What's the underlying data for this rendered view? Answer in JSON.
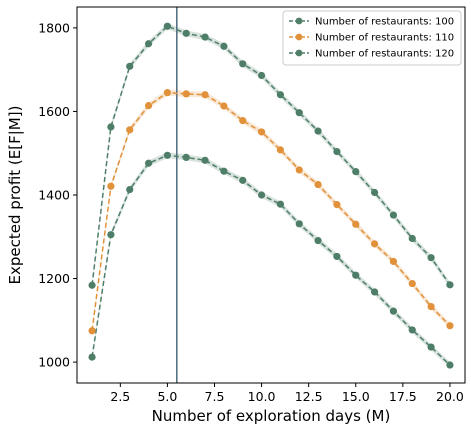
{
  "chart_data": {
    "type": "line",
    "title": "",
    "xlabel": "Number of exploration days (M)",
    "ylabel": "Expected profit (E[F|M])",
    "xlim": [
      0.2,
      20.8
    ],
    "ylim": [
      950,
      1850
    ],
    "grid": false,
    "legend_position": "top-right",
    "x_ticks": [
      2.5,
      5.0,
      7.5,
      10.0,
      12.5,
      15.0,
      17.5,
      20.0
    ],
    "x_tick_labels": [
      "2.5",
      "5.0",
      "7.5",
      "10.0",
      "12.5",
      "15.0",
      "17.5",
      "20.0"
    ],
    "y_ticks": [
      1000,
      1200,
      1400,
      1600,
      1800
    ],
    "y_tick_labels": [
      "1000",
      "1200",
      "1400",
      "1600",
      "1800"
    ],
    "vertical_line_x": 5.5,
    "x": [
      1,
      2,
      3,
      4,
      5,
      6,
      7,
      8,
      9,
      10,
      11,
      12,
      13,
      14,
      15,
      16,
      17,
      18,
      19,
      20
    ],
    "series": [
      {
        "name": "Number of restaurants: 100",
        "color": "#4e7e68",
        "values": [
          1012,
          1305,
          1413,
          1476,
          1495,
          1490,
          1483,
          1457,
          1435,
          1400,
          1378,
          1331,
          1291,
          1253,
          1208,
          1168,
          1122,
          1077,
          1036,
          993
        ]
      },
      {
        "name": "Number of restaurants: 110",
        "color": "#e0913a",
        "values": [
          1075,
          1421,
          1556,
          1614,
          1645,
          1642,
          1640,
          1613,
          1578,
          1551,
          1508,
          1460,
          1425,
          1377,
          1330,
          1283,
          1241,
          1188,
          1133,
          1087
        ]
      },
      {
        "name": "Number of restaurants: 120",
        "color": "#4e7e68",
        "values": [
          1184,
          1563,
          1708,
          1762,
          1804,
          1787,
          1778,
          1756,
          1714,
          1686,
          1640,
          1597,
          1553,
          1504,
          1456,
          1406,
          1352,
          1296,
          1250,
          1185
        ]
      }
    ]
  }
}
